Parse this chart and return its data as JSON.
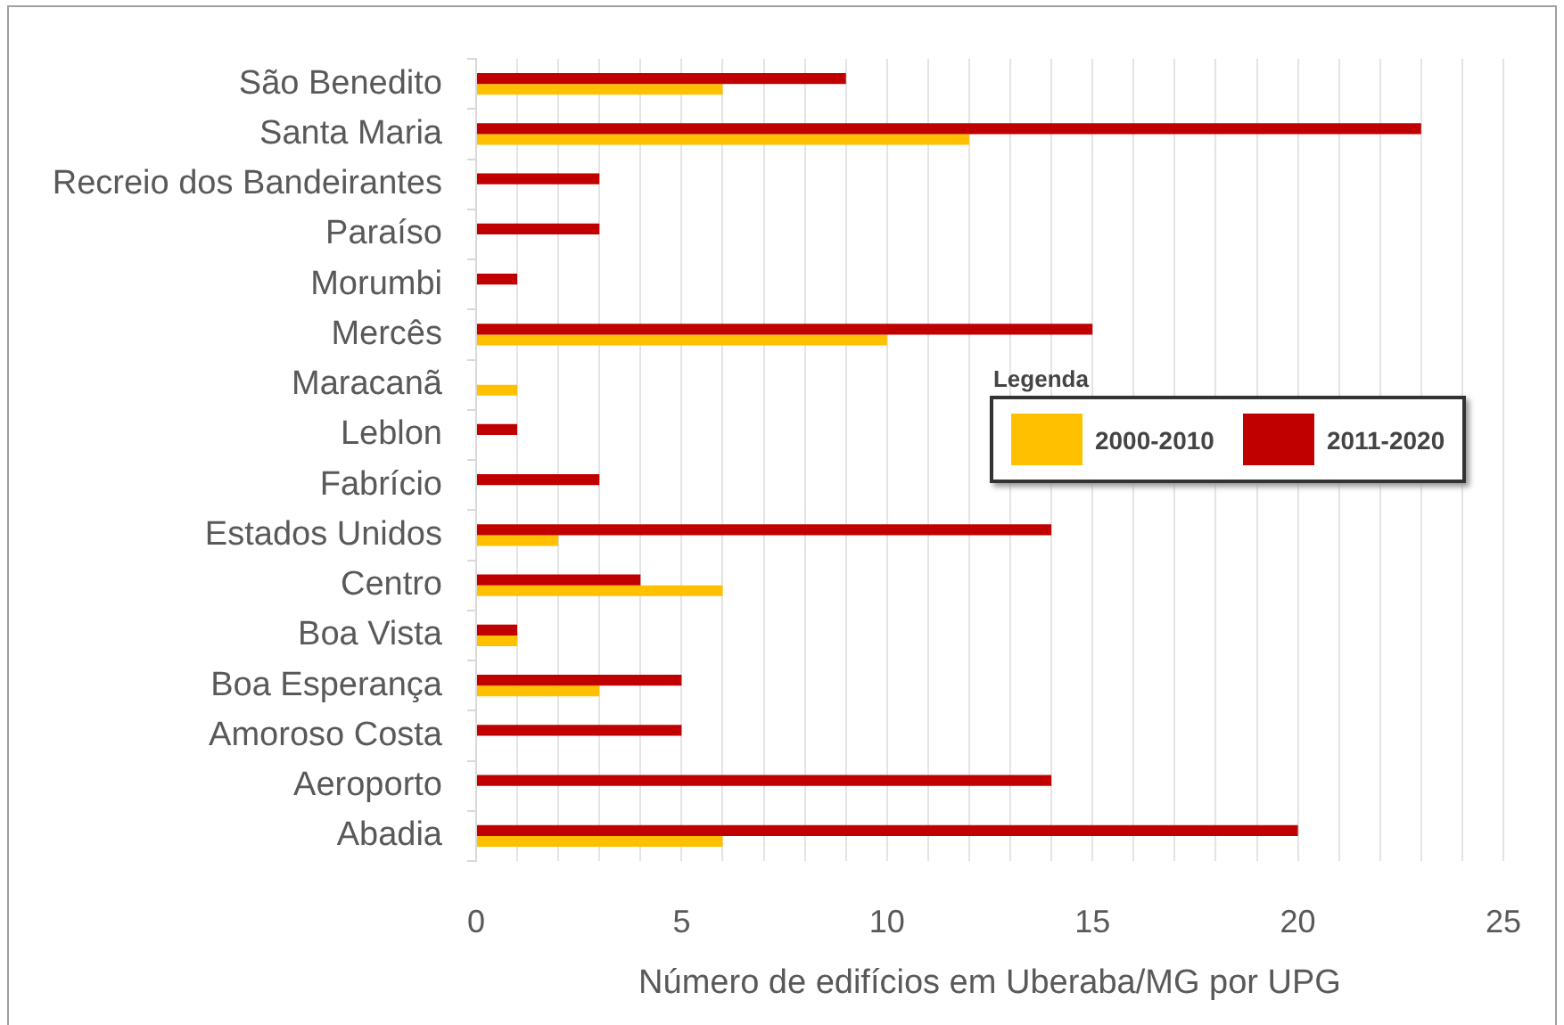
{
  "chart_data": {
    "type": "bar",
    "orientation": "horizontal",
    "categories": [
      "São Benedito",
      "Santa Maria",
      "Recreio dos Bandeirantes",
      "Paraíso",
      "Morumbi",
      "Mercês",
      "Maracanã",
      "Leblon",
      "Fabrício",
      "Estados Unidos",
      "Centro",
      "Boa Vista",
      "Boa Esperança",
      "Amoroso Costa",
      "Aeroporto",
      "Abadia"
    ],
    "series": [
      {
        "name": "2000-2010",
        "color": "#ffc000",
        "values": [
          6,
          12,
          0,
          0,
          0,
          10,
          1,
          0,
          0,
          2,
          6,
          1,
          3,
          0,
          0,
          6
        ]
      },
      {
        "name": "2011-2020",
        "color": "#c00000",
        "values": [
          9,
          23,
          3,
          3,
          1,
          15,
          0,
          1,
          3,
          14,
          4,
          1,
          5,
          5,
          14,
          20
        ]
      }
    ],
    "xlabel": "Número de edifícios em Uberaba/MG por UPG",
    "xlim": [
      0,
      25
    ],
    "xticks": [
      0,
      {
        "value": 1,
        "label": null
      },
      {
        "value": 2,
        "label": null
      },
      {
        "value": 3,
        "label": null
      },
      {
        "value": 4,
        "label": null
      },
      5,
      {
        "value": 6,
        "label": null
      },
      {
        "value": 7,
        "label": null
      },
      {
        "value": 8,
        "label": null
      },
      {
        "value": 9,
        "label": null
      },
      10,
      {
        "value": 11,
        "label": null
      },
      {
        "value": 12,
        "label": null
      },
      {
        "value": 13,
        "label": null
      },
      {
        "value": 14,
        "label": null
      },
      15,
      {
        "value": 16,
        "label": null
      },
      {
        "value": 17,
        "label": null
      },
      {
        "value": 18,
        "label": null
      },
      {
        "value": 19,
        "label": null
      },
      20,
      {
        "value": 21,
        "label": null
      },
      {
        "value": 22,
        "label": null
      },
      {
        "value": 23,
        "label": null
      },
      {
        "value": 24,
        "label": null
      },
      25
    ],
    "grid": "x",
    "legend": "right",
    "legend_title": "Legenda"
  }
}
